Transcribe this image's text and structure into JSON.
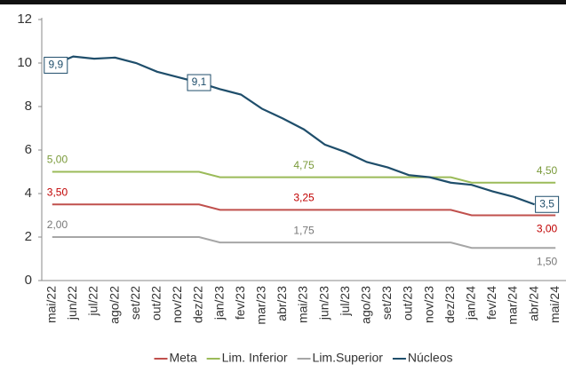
{
  "chart_data": {
    "type": "line",
    "categories": [
      "mai/22",
      "jun/22",
      "jul/22",
      "ago/22",
      "set/22",
      "out/22",
      "nov/22",
      "dez/22",
      "jan/23",
      "fev/23",
      "mar/23",
      "abr/23",
      "mai/23",
      "jun/23",
      "jul/23",
      "ago/23",
      "set/23",
      "out/23",
      "nov/23",
      "dez/23",
      "jan/24",
      "fev/24",
      "mar/24",
      "abr/24",
      "mai/24"
    ],
    "series": [
      {
        "name": "Meta",
        "color": "#c0504d",
        "values": [
          3.5,
          3.5,
          3.5,
          3.5,
          3.5,
          3.5,
          3.5,
          3.5,
          3.25,
          3.25,
          3.25,
          3.25,
          3.25,
          3.25,
          3.25,
          3.25,
          3.25,
          3.25,
          3.25,
          3.25,
          3.0,
          3.0,
          3.0,
          3.0,
          3.0
        ],
        "value_labels": [
          "3,50",
          null,
          null,
          null,
          null,
          null,
          null,
          null,
          null,
          null,
          null,
          null,
          "3,25",
          null,
          null,
          null,
          null,
          null,
          null,
          null,
          null,
          null,
          null,
          null,
          "3,00"
        ]
      },
      {
        "name": "Lim. Inferior",
        "color": "#9bbb59",
        "values": [
          5.0,
          5.0,
          5.0,
          5.0,
          5.0,
          5.0,
          5.0,
          5.0,
          4.75,
          4.75,
          4.75,
          4.75,
          4.75,
          4.75,
          4.75,
          4.75,
          4.75,
          4.75,
          4.75,
          4.75,
          4.5,
          4.5,
          4.5,
          4.5,
          4.5
        ],
        "value_labels": [
          "5,00",
          null,
          null,
          null,
          null,
          null,
          null,
          null,
          null,
          null,
          null,
          null,
          "4,75",
          null,
          null,
          null,
          null,
          null,
          null,
          null,
          null,
          null,
          null,
          null,
          "4,50"
        ]
      },
      {
        "name": "Lim.Superior",
        "color": "#a6a6a6",
        "values": [
          2.0,
          2.0,
          2.0,
          2.0,
          2.0,
          2.0,
          2.0,
          2.0,
          1.75,
          1.75,
          1.75,
          1.75,
          1.75,
          1.75,
          1.75,
          1.75,
          1.75,
          1.75,
          1.75,
          1.75,
          1.5,
          1.5,
          1.5,
          1.5,
          1.5
        ],
        "value_labels": [
          "2,00",
          null,
          null,
          null,
          null,
          null,
          null,
          null,
          null,
          null,
          null,
          null,
          "1,75",
          null,
          null,
          null,
          null,
          null,
          null,
          null,
          null,
          null,
          null,
          null,
          "1,50"
        ]
      },
      {
        "name": "Núcleos",
        "color": "#1f4e6b",
        "values": [
          9.9,
          10.3,
          10.2,
          10.25,
          10.0,
          9.6,
          9.35,
          9.1,
          8.8,
          8.55,
          7.9,
          7.45,
          6.95,
          6.25,
          5.9,
          5.45,
          5.2,
          4.85,
          4.75,
          4.5,
          4.4,
          4.1,
          3.85,
          3.5,
          null
        ],
        "value_labels": [
          "9,9",
          null,
          null,
          null,
          null,
          null,
          null,
          "9,1",
          null,
          null,
          null,
          null,
          null,
          null,
          null,
          null,
          null,
          null,
          null,
          null,
          null,
          null,
          null,
          "3,5",
          null
        ]
      }
    ],
    "ylim": [
      0,
      12
    ],
    "yticks": [
      0,
      2,
      4,
      6,
      8,
      10,
      12
    ],
    "grid": false
  }
}
